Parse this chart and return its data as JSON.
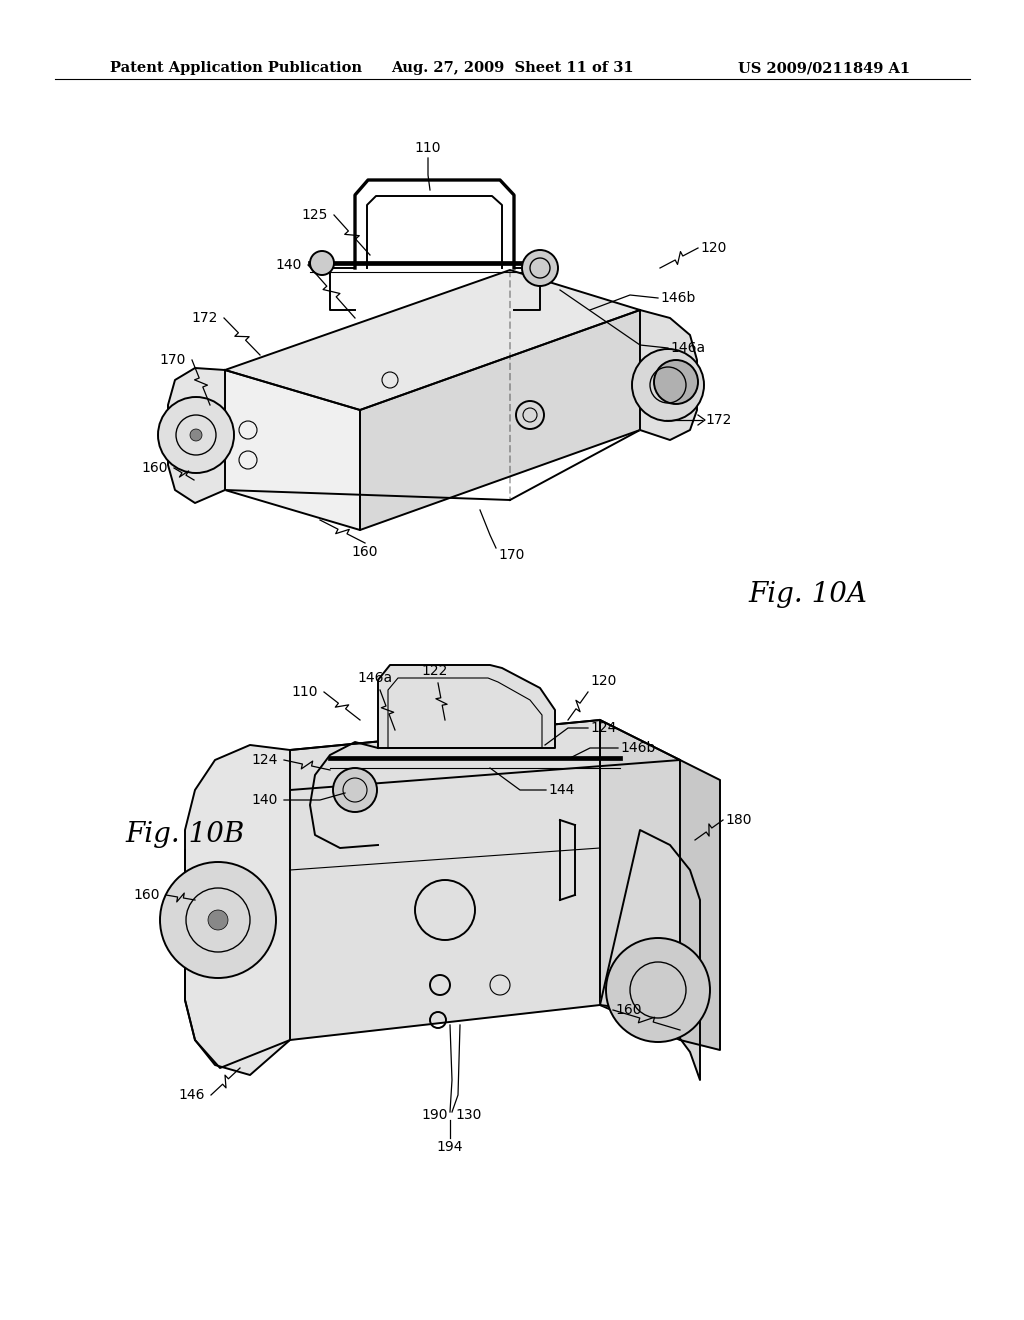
{
  "background_color": "#ffffff",
  "header_left": "Patent Application Publication",
  "header_mid": "Aug. 27, 2009  Sheet 11 of 31",
  "header_right": "US 2009/0211849 A1",
  "header_fontsize": 10.5,
  "fig10a_label": "Fig. 10A",
  "fig10b_label": "Fig. 10B",
  "line_color": "#000000",
  "lw_main": 1.4,
  "lw_thin": 0.8,
  "ann_fs": 10,
  "fig_label_fs": 20,
  "header_bold": true
}
